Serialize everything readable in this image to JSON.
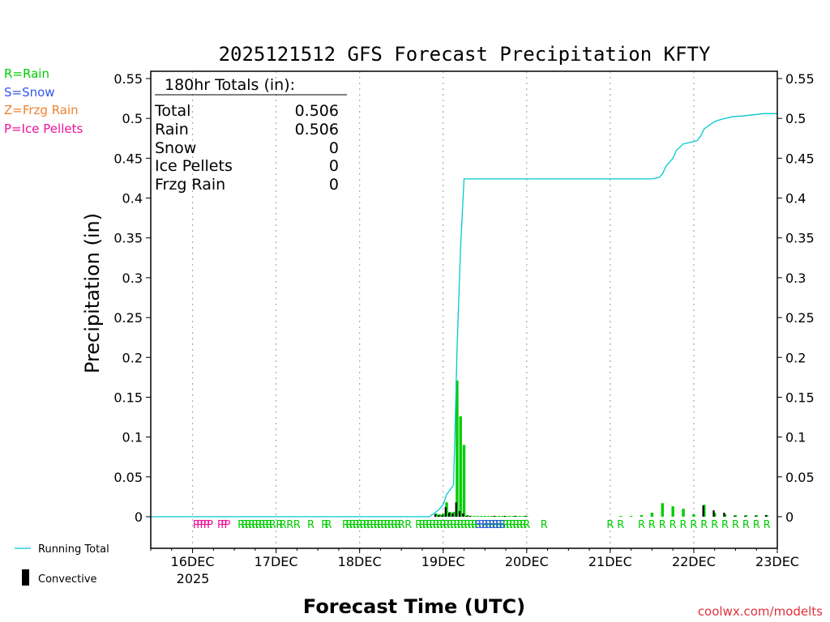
{
  "chart_data": {
    "type": "bar",
    "title": "2025121512 GFS Forecast Precipitation KFTY",
    "xlabel": "Forecast Time (UTC)",
    "ylabel": "Precipitation (in)",
    "ylim": [
      -0.04,
      0.56
    ],
    "yticks": [
      0,
      0.05,
      0.1,
      0.15,
      0.2,
      0.25,
      0.3,
      0.35,
      0.4,
      0.45,
      0.5,
      0.55
    ],
    "ytick_labels": [
      "0",
      "0.05",
      "0.1",
      "0.15",
      "0.2",
      "0.25",
      "0.3",
      "0.35",
      "0.4",
      "0.45",
      "0.5",
      "0.55"
    ],
    "x_unit": "forecast hour",
    "xlim": [
      0,
      180
    ],
    "xticks": [
      12,
      36,
      60,
      84,
      108,
      132,
      156,
      180
    ],
    "xtick_labels": [
      "16DEC",
      "17DEC",
      "18DEC",
      "19DEC",
      "20DEC",
      "21DEC",
      "22DEC",
      "23DEC"
    ],
    "x_sub_label": "2025",
    "colors": {
      "rain": "#00cc00",
      "snow": "#3355ee",
      "frzg": "#f08030",
      "ice": "#ee1199",
      "running": "#00c8d0",
      "convective": "#000000",
      "grid": "#aaaaaa"
    },
    "series": [
      {
        "name": "Total Precip",
        "color": "#00cc00",
        "points": [
          [
            82,
            0.004
          ],
          [
            83,
            0.003
          ],
          [
            84,
            0.004
          ],
          [
            85,
            0.018
          ],
          [
            86,
            0.006
          ],
          [
            87,
            0.006
          ],
          [
            88,
            0.171
          ],
          [
            89,
            0.126
          ],
          [
            90,
            0.09
          ],
          [
            91,
            0.002
          ],
          [
            92,
            0.001
          ],
          [
            93,
            0.001
          ],
          [
            94,
            0.001
          ],
          [
            95,
            0.001
          ],
          [
            96,
            0.001
          ],
          [
            97,
            0.001
          ],
          [
            98,
            0.001
          ],
          [
            99,
            0.001
          ],
          [
            100,
            0.001
          ],
          [
            101,
            0.001
          ],
          [
            102,
            0.001
          ],
          [
            103,
            0.001
          ],
          [
            104,
            0.001
          ],
          [
            105,
            0.001
          ],
          [
            106,
            0.001
          ],
          [
            107,
            0.001
          ],
          [
            108,
            0.001
          ],
          [
            135,
            0.001
          ],
          [
            138,
            0.001
          ],
          [
            141,
            0.002
          ],
          [
            144,
            0.005
          ],
          [
            147,
            0.017
          ],
          [
            150,
            0.013
          ],
          [
            153,
            0.01
          ],
          [
            156,
            0.003
          ],
          [
            159,
            0.015
          ],
          [
            162,
            0.005
          ],
          [
            165,
            0.003
          ],
          [
            168,
            0.002
          ],
          [
            171,
            0.002
          ],
          [
            174,
            0.002
          ],
          [
            177,
            0.002
          ]
        ]
      },
      {
        "name": "Convective",
        "color": "#000000",
        "points": [
          [
            82,
            0.003
          ],
          [
            83,
            0.002
          ],
          [
            84,
            0.002
          ],
          [
            85,
            0.012
          ],
          [
            86,
            0.005
          ],
          [
            87,
            0.004
          ],
          [
            88,
            0.018
          ],
          [
            89,
            0.007
          ],
          [
            90,
            0.004
          ],
          [
            91,
            0.001
          ],
          [
            92,
            0.001
          ],
          [
            99,
            0.001
          ],
          [
            102,
            0.001
          ],
          [
            105,
            0.001
          ],
          [
            108,
            0.001
          ],
          [
            159,
            0.014
          ],
          [
            162,
            0.008
          ],
          [
            165,
            0.005
          ],
          [
            168,
            0.001
          ],
          [
            171,
            0.001
          ],
          [
            174,
            0.001
          ],
          [
            177,
            0.002
          ]
        ]
      },
      {
        "name": "Running Total",
        "color": "#00c8d0",
        "points": [
          [
            0,
            0
          ],
          [
            80,
            0
          ],
          [
            81,
            0.003
          ],
          [
            82,
            0.006
          ],
          [
            83,
            0.01
          ],
          [
            84,
            0.015
          ],
          [
            85,
            0.028
          ],
          [
            86,
            0.034
          ],
          [
            87,
            0.04
          ],
          [
            88,
            0.211
          ],
          [
            89,
            0.337
          ],
          [
            90,
            0.424
          ],
          [
            144,
            0.424
          ],
          [
            145,
            0.425
          ],
          [
            146,
            0.426
          ],
          [
            147,
            0.43
          ],
          [
            148,
            0.44
          ],
          [
            150,
            0.45
          ],
          [
            151,
            0.46
          ],
          [
            153,
            0.468
          ],
          [
            155,
            0.47
          ],
          [
            157,
            0.472
          ],
          [
            158,
            0.478
          ],
          [
            159,
            0.487
          ],
          [
            160,
            0.49
          ],
          [
            162,
            0.496
          ],
          [
            164,
            0.499
          ],
          [
            165,
            0.5
          ],
          [
            167,
            0.502
          ],
          [
            170,
            0.503
          ],
          [
            174,
            0.505
          ],
          [
            176,
            0.506
          ],
          [
            180,
            0.506
          ]
        ]
      }
    ],
    "ptype_marks": [
      {
        "code": "P",
        "hours": [
          13,
          14,
          15,
          16,
          17,
          20,
          21,
          22
        ]
      },
      {
        "code": "R",
        "hours": [
          26,
          27,
          28,
          29,
          30,
          31,
          32,
          33,
          34,
          35,
          37,
          38,
          40,
          42,
          46,
          50,
          51,
          56,
          57,
          58,
          59,
          60,
          61,
          62,
          63,
          64,
          65,
          66,
          67,
          68,
          69,
          70,
          71,
          72,
          74,
          77,
          78,
          79,
          80,
          81,
          82,
          83,
          84,
          85,
          86,
          87,
          88,
          89,
          90,
          91,
          92,
          93,
          94,
          96,
          97,
          98,
          99,
          100,
          101,
          102,
          103,
          104,
          105,
          106,
          107,
          108,
          113,
          132,
          135,
          141,
          144,
          147,
          150,
          153,
          156,
          159,
          162,
          165,
          168,
          171,
          174,
          177
        ]
      },
      {
        "code": "S",
        "hours": [
          94,
          95,
          96,
          97,
          98,
          99,
          100,
          101
        ]
      }
    ]
  },
  "legend": {
    "rain": "R=Rain",
    "snow": "S=Snow",
    "frzg": "Z=Frzg Rain",
    "ice": "P=Ice Pellets",
    "running_total": "Running Total",
    "convective": "Convective"
  },
  "totals": {
    "header": "180hr Totals (in):",
    "rows": [
      {
        "label": "Total",
        "value": "0.506"
      },
      {
        "label": "Rain",
        "value": "0.506"
      },
      {
        "label": "Snow",
        "value": "0"
      },
      {
        "label": "Ice Pellets",
        "value": "0"
      },
      {
        "label": "Frzg Rain",
        "value": "0"
      }
    ]
  },
  "credit": "coolwx.com/modelts"
}
